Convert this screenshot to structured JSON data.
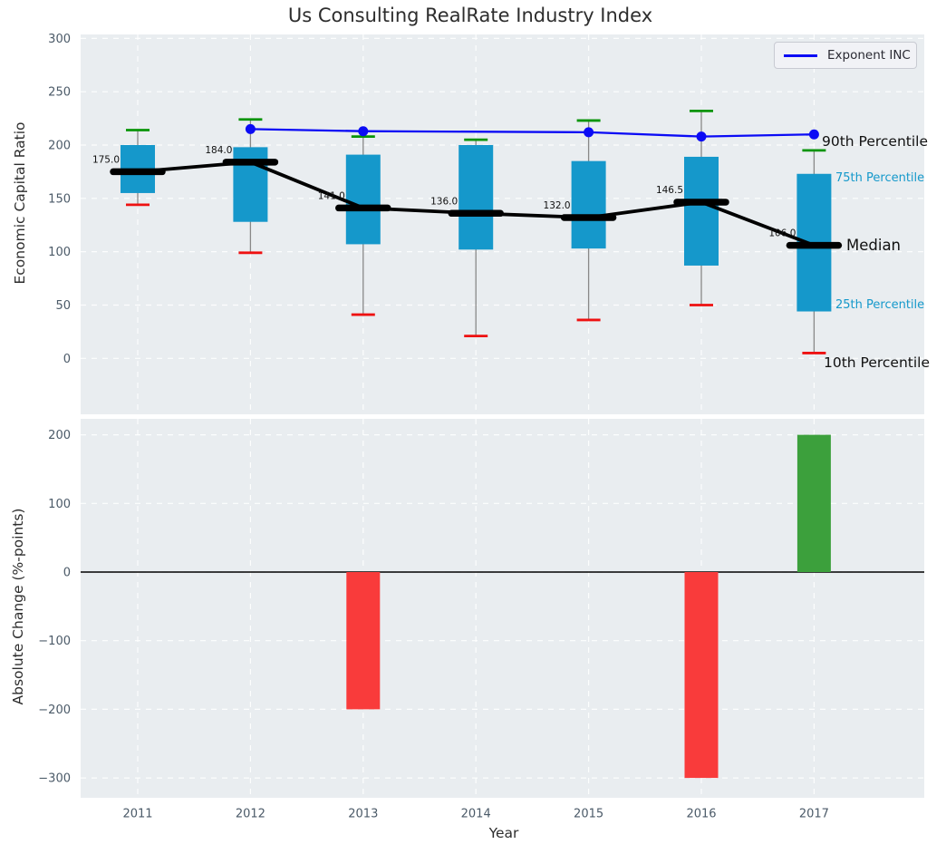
{
  "title": "Us Consulting RealRate Industry Index",
  "legend": {
    "label": "Exponent INC"
  },
  "colors": {
    "axes_bg": "#e9edf0",
    "grid": "#ffffff",
    "box_fill": "#1598cb",
    "whisker": "#888888",
    "cap_high": "#089408",
    "cap_low": "#ee1111",
    "median_line": "#000000",
    "exponent_line": "#0b0bf5",
    "bar_negative": "#f93b3b",
    "bar_positive": "#3ca03c",
    "tick_label": "#4b5a68",
    "value_label": "#111111",
    "zero_line": "#000000",
    "percentile_label": "#1599cb"
  },
  "chart_data": [
    {
      "type": "box",
      "title": "Us Consulting RealRate Industry Index",
      "ylabel": "Economic Capital Ratio",
      "categories": [
        "2011",
        "2012",
        "2013",
        "2014",
        "2015",
        "2016",
        "2017"
      ],
      "yticks": [
        0,
        50,
        100,
        150,
        200,
        250,
        300
      ],
      "ylim": [
        -52,
        304
      ],
      "grid": true,
      "boxes": [
        {
          "year": "2011",
          "p10": 144,
          "p25": 155,
          "median": 175.0,
          "p75": 200,
          "p90": 214,
          "median_label": "175.0"
        },
        {
          "year": "2012",
          "p10": 99,
          "p25": 128,
          "median": 184.0,
          "p75": 198,
          "p90": 224,
          "median_label": "184.0"
        },
        {
          "year": "2013",
          "p10": 41,
          "p25": 107,
          "median": 141.0,
          "p75": 191,
          "p90": 208,
          "median_label": "141.0"
        },
        {
          "year": "2014",
          "p10": 21,
          "p25": 102,
          "median": 136.0,
          "p75": 200,
          "p90": 205,
          "median_label": "136.0"
        },
        {
          "year": "2015",
          "p10": 36,
          "p25": 103,
          "median": 132.0,
          "p75": 185,
          "p90": 223,
          "median_label": "132.0"
        },
        {
          "year": "2016",
          "p10": 50,
          "p25": 87,
          "median": 146.5,
          "p75": 189,
          "p90": 232,
          "median_label": "146.5"
        },
        {
          "year": "2017",
          "p10": 5,
          "p25": 44,
          "median": 106.0,
          "p75": 173,
          "p90": 195,
          "median_label": "106.0"
        }
      ],
      "series": [
        {
          "name": "Exponent INC",
          "x": [
            "2012",
            "2013",
            "2015",
            "2016",
            "2017"
          ],
          "values": [
            215,
            213,
            212,
            208,
            210
          ]
        }
      ],
      "legend_position": "upper right",
      "annotations": [
        {
          "text": "90th Percentile",
          "style": "black"
        },
        {
          "text": "75th Percentile",
          "style": "cyan"
        },
        {
          "text": "Median",
          "style": "black"
        },
        {
          "text": "25th Percentile",
          "style": "cyan"
        },
        {
          "text": "10th Percentile",
          "style": "black"
        }
      ]
    },
    {
      "type": "bar",
      "ylabel": "Absolute Change (%-points)",
      "xlabel": "Year",
      "categories": [
        "2011",
        "2012",
        "2013",
        "2014",
        "2015",
        "2016",
        "2017"
      ],
      "values": [
        0,
        0,
        -200,
        0,
        0,
        -300,
        200
      ],
      "yticks": [
        -300,
        -200,
        -100,
        0,
        100,
        200
      ],
      "ylim": [
        -329,
        223
      ],
      "grid": true
    }
  ]
}
